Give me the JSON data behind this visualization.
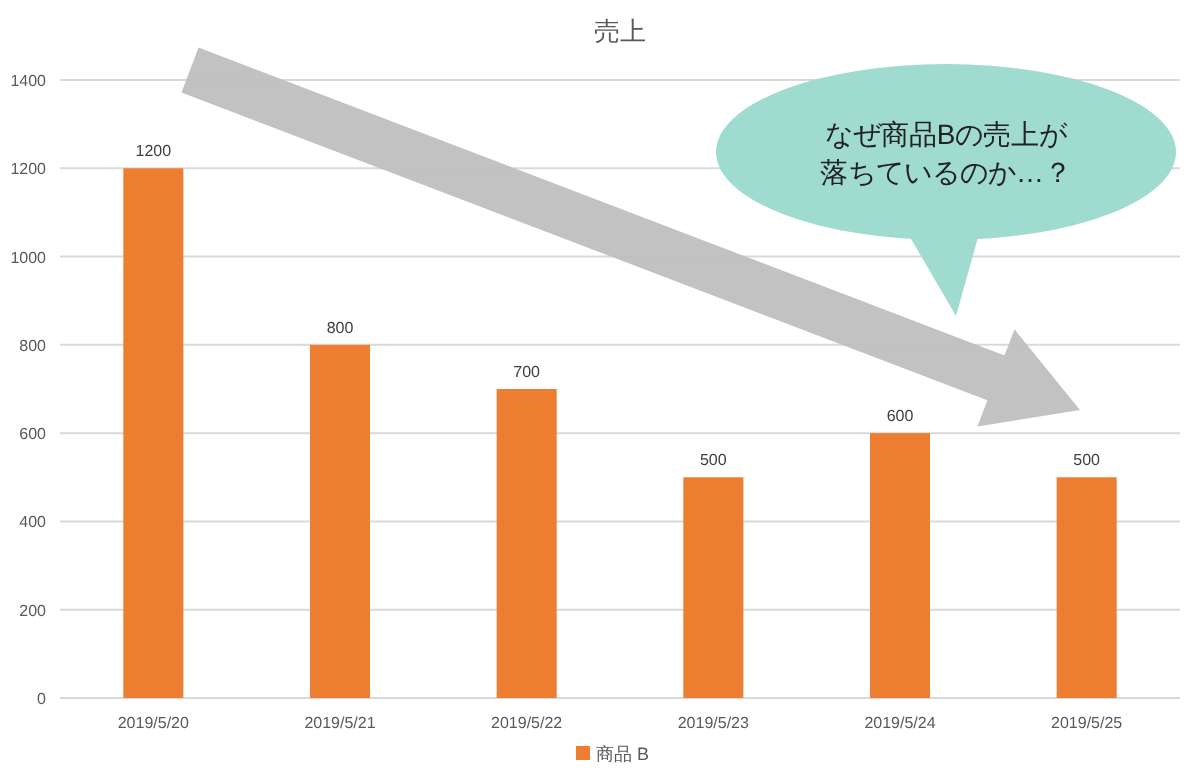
{
  "chart_data": {
    "type": "bar",
    "title": "売上",
    "categories": [
      "2019/5/20",
      "2019/5/21",
      "2019/5/22",
      "2019/5/23",
      "2019/5/24",
      "2019/5/25"
    ],
    "series": [
      {
        "name": "商品 B",
        "color": "#ed7d31",
        "values": [
          1200,
          800,
          700,
          500,
          600,
          500
        ]
      }
    ],
    "ylim": [
      0,
      1400
    ],
    "yticks": [
      0,
      200,
      400,
      600,
      800,
      1000,
      1200,
      1400
    ],
    "grid": "y",
    "legend": "bottom",
    "data_labels": true,
    "annotations": [
      "なぜ商品Bの売上が落ちているのか…？"
    ]
  }
}
